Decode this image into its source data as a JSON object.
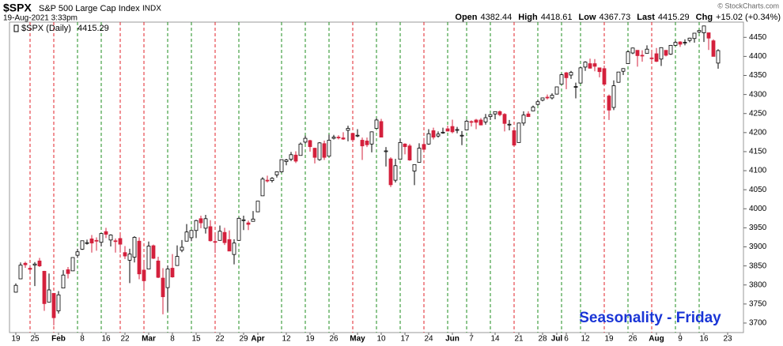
{
  "chart_data": {
    "type": "candlestick",
    "title": "$SPX",
    "subtitle": "S&P 500 Large Cap Index",
    "exchange": "INDX",
    "date": "19-Aug-2021 3:33pm",
    "credit": "© StockCharts.com",
    "legend": "$SPX (Daily)",
    "header_labels": {
      "open": "Open",
      "high": "High",
      "low": "Low",
      "last": "Last",
      "change": "Chg"
    },
    "change": "+15.02 (+0.34%)",
    "annotation": "Seasonality - Friday",
    "up_color": "#ffffff",
    "down_color": "#d4203c",
    "outline_color": "#000000",
    "categories": [
      "Jan 19",
      "Jan 20",
      "Jan 21",
      "Jan 22",
      "Jan 25",
      "Jan 26",
      "Jan 27",
      "Jan 28",
      "Jan 29",
      "Feb 1",
      "Feb 2",
      "Feb 3",
      "Feb 4",
      "Feb 5",
      "Feb 8",
      "Feb 9",
      "Feb 10",
      "Feb 11",
      "Feb 12",
      "Feb 16",
      "Feb 17",
      "Feb 18",
      "Feb 19",
      "Feb 22",
      "Feb 23",
      "Feb 24",
      "Feb 25",
      "Feb 26",
      "Mar 1",
      "Mar 2",
      "Mar 3",
      "Mar 4",
      "Mar 5",
      "Mar 8",
      "Mar 9",
      "Mar 10",
      "Mar 11",
      "Mar 12",
      "Mar 15",
      "Mar 16",
      "Mar 17",
      "Mar 18",
      "Mar 19",
      "Mar 22",
      "Mar 23",
      "Mar 24",
      "Mar 25",
      "Mar 26",
      "Mar 29",
      "Mar 30",
      "Mar 31",
      "Apr 1",
      "Apr 5",
      "Apr 6",
      "Apr 7",
      "Apr 8",
      "Apr 9",
      "Apr 12",
      "Apr 13",
      "Apr 14",
      "Apr 15",
      "Apr 16",
      "Apr 19",
      "Apr 20",
      "Apr 21",
      "Apr 22",
      "Apr 23",
      "Apr 26",
      "Apr 27",
      "Apr 28",
      "Apr 29",
      "Apr 30",
      "May 3",
      "May 4",
      "May 5",
      "May 6",
      "May 7",
      "May 10",
      "May 11",
      "May 12",
      "May 13",
      "May 14",
      "May 17",
      "May 18",
      "May 19",
      "May 20",
      "May 21",
      "May 24",
      "May 25",
      "May 26",
      "May 27",
      "May 28",
      "Jun 1",
      "Jun 2",
      "Jun 3",
      "Jun 4",
      "Jun 7",
      "Jun 8",
      "Jun 9",
      "Jun 10",
      "Jun 11",
      "Jun 14",
      "Jun 15",
      "Jun 16",
      "Jun 17",
      "Jun 18",
      "Jun 21",
      "Jun 22",
      "Jun 23",
      "Jun 24",
      "Jun 25",
      "Jun 28",
      "Jun 29",
      "Jun 30",
      "Jul 1",
      "Jul 2",
      "Jul 6",
      "Jul 7",
      "Jul 8",
      "Jul 9",
      "Jul 12",
      "Jul 13",
      "Jul 14",
      "Jul 15",
      "Jul 16",
      "Jul 19",
      "Jul 20",
      "Jul 21",
      "Jul 22",
      "Jul 23",
      "Jul 26",
      "Jul 27",
      "Jul 28",
      "Jul 29",
      "Jul 30",
      "Aug 2",
      "Aug 3",
      "Aug 4",
      "Aug 5",
      "Aug 6",
      "Aug 9",
      "Aug 10",
      "Aug 11",
      "Aug 12",
      "Aug 13",
      "Aug 16",
      "Aug 17",
      "Aug 18",
      "Aug 19",
      "Aug 20",
      "Aug 23"
    ],
    "open": [
      3781,
      3816,
      3857,
      3844,
      3852,
      3863,
      3836,
      3755,
      3778,
      3732,
      3792,
      3840,
      3837,
      3878,
      3894,
      3910,
      3921,
      3917,
      3912,
      3940,
      3918,
      3916,
      3922,
      3885,
      3865,
      3873,
      3915,
      3839,
      3842,
      3903,
      3863,
      3818,
      3793,
      3844,
      3851,
      3891,
      3915,
      3924,
      3943,
      3974,
      3949,
      3953,
      3914,
      3917,
      3938,
      3919,
      3880,
      3917,
      3969,
      3963,
      3967,
      3992,
      4034,
      4075,
      4074,
      4089,
      4097,
      4124,
      4130,
      4141,
      4140,
      4175,
      4179,
      4159,
      4129,
      4171,
      4138,
      4185,
      4188,
      4186,
      4206,
      4198,
      4191,
      4180,
      4178,
      4170,
      4211,
      4229,
      4150,
      4131,
      4075,
      4130,
      4170,
      4165,
      4099,
      4122,
      4169,
      4170,
      4205,
      4191,
      4201,
      4210,
      4216,
      4206,
      4192,
      4207,
      4229,
      4233,
      4233,
      4228,
      4242,
      4249,
      4255,
      4248,
      4220,
      4205,
      4174,
      4225,
      4249,
      4257,
      4274,
      4285,
      4293,
      4291,
      4301,
      4327,
      4357,
      4351,
      4321,
      4330,
      4372,
      4381,
      4381,
      4370,
      4368,
      4296,
      4266,
      4332,
      4361,
      4381,
      4409,
      4416,
      4403,
      4408,
      4396,
      4407,
      4393,
      4416,
      4406,
      4429,
      4438,
      4437,
      4442,
      4447,
      4464,
      4462,
      4462,
      4441,
      4382.44,
      null,
      null
    ],
    "high": [
      3804,
      3859,
      3861,
      3852,
      3860,
      3871,
      3837,
      3830,
      3778,
      3784,
      3839,
      3847,
      3872,
      3895,
      3916,
      3919,
      3931,
      3925,
      3935,
      3950,
      3933,
      3922,
      3931,
      3902,
      3895,
      3928,
      3925,
      3861,
      3914,
      3906,
      3874,
      3844,
      3851,
      3881,
      3904,
      3918,
      3960,
      3944,
      3971,
      3982,
      3984,
      3970,
      3931,
      3956,
      3950,
      3943,
      3920,
      3978,
      3982,
      3969,
      3994,
      4020,
      4083,
      4087,
      4083,
      4098,
      4129,
      4131,
      4149,
      4151,
      4174,
      4192,
      4181,
      4160,
      4175,
      4179,
      4195,
      4194,
      4193,
      4201,
      4218,
      4199,
      4209,
      4187,
      4187,
      4203,
      4238,
      4236,
      4162,
      4135,
      4131,
      4184,
      4172,
      4170,
      4117,
      4172,
      4186,
      4209,
      4213,
      4203,
      4213,
      4218,
      4234,
      4215,
      4204,
      4234,
      4232,
      4236,
      4238,
      4249,
      4249,
      4255,
      4258,
      4251,
      4233,
      4210,
      4226,
      4256,
      4256,
      4271,
      4286,
      4292,
      4300,
      4303,
      4320,
      4355,
      4359,
      4362,
      4331,
      4372,
      4387,
      4394,
      4393,
      4370,
      4376,
      4300,
      4337,
      4359,
      4369,
      4415,
      4423,
      4416,
      4416,
      4429,
      4412,
      4422,
      4424,
      4416,
      4430,
      4441,
      4440,
      4445,
      4449,
      4461,
      4468,
      4480,
      4462,
      4445,
      4418.61,
      null,
      null
    ],
    "low": [
      3780,
      3816,
      3845,
      3831,
      3797,
      3847,
      3732,
      3755,
      3694,
      3725,
      3792,
      3817,
      3837,
      3871,
      3892,
      3906,
      3885,
      3890,
      3901,
      3923,
      3901,
      3885,
      3885,
      3868,
      3805,
      3859,
      3815,
      3790,
      3842,
      3868,
      3818,
      3723,
      3730,
      3819,
      3851,
      3886,
      3915,
      3915,
      3923,
      3949,
      3935,
      3914,
      3884,
      3917,
      3905,
      3889,
      3854,
      3917,
      3944,
      3944,
      3967,
      3992,
      4034,
      4069,
      4069,
      4082,
      4095,
      4114,
      4125,
      4120,
      4140,
      4171,
      4150,
      4119,
      4126,
      4128,
      4138,
      4182,
      4182,
      4181,
      4177,
      4175,
      4188,
      4128,
      4162,
      4148,
      4210,
      4188,
      4111,
      4057,
      4069,
      4130,
      4143,
      4126,
      4062,
      4122,
      4152,
      4168,
      4182,
      4187,
      4197,
      4203,
      4198,
      4198,
      4167,
      4207,
      4216,
      4209,
      4219,
      4221,
      4233,
      4235,
      4243,
      4203,
      4206,
      4165,
      4174,
      4218,
      4241,
      4257,
      4271,
      4282,
      4287,
      4287,
      4300,
      4327,
      4314,
      4341,
      4290,
      4330,
      4362,
      4368,
      4361,
      4345,
      4325,
      4233,
      4259,
      4331,
      4351,
      4381,
      4406,
      4373,
      4386,
      4408,
      4389,
      4385,
      4375,
      4400,
      4404,
      4428,
      4425,
      4429,
      4437,
      4436,
      4461,
      4438,
      4417,
      4400,
      4367.73,
      null,
      null
    ],
    "close": [
      3799,
      3852,
      3853,
      3841,
      3855,
      3850,
      3751,
      3787,
      3714,
      3774,
      3826,
      3830,
      3872,
      3887,
      3916,
      3911,
      3910,
      3916,
      3935,
      3933,
      3931,
      3914,
      3907,
      3876,
      3881,
      3925,
      3829,
      3811,
      3902,
      3870,
      3820,
      3769,
      3842,
      3821,
      3875,
      3899,
      3939,
      3943,
      3969,
      3963,
      3974,
      3916,
      3913,
      3941,
      3911,
      3889,
      3910,
      3975,
      3971,
      3959,
      3973,
      4020,
      4078,
      4074,
      4080,
      4097,
      4129,
      4128,
      4142,
      4125,
      4170,
      4185,
      4163,
      4135,
      4173,
      4135,
      4180,
      4188,
      4187,
      4183,
      4211,
      4181,
      4193,
      4165,
      4168,
      4202,
      4233,
      4188,
      4152,
      4063,
      4113,
      4174,
      4163,
      4128,
      4116,
      4159,
      4156,
      4197,
      4188,
      4196,
      4201,
      4204,
      4202,
      4208,
      4193,
      4230,
      4227,
      4227,
      4220,
      4239,
      4247,
      4255,
      4247,
      4224,
      4222,
      4167,
      4225,
      4246,
      4242,
      4267,
      4281,
      4291,
      4292,
      4298,
      4320,
      4352,
      4344,
      4358,
      4321,
      4370,
      4385,
      4369,
      4374,
      4360,
      4327,
      4259,
      4323,
      4359,
      4368,
      4412,
      4422,
      4402,
      4401,
      4419,
      4395,
      4387,
      4423,
      4403,
      4429,
      4437,
      4432,
      4437,
      4448,
      4461,
      4468,
      4480,
      4448,
      4400,
      4415.29,
      null,
      null
    ],
    "ylim": [
      3675,
      4490
    ],
    "yticks": [
      3700,
      3750,
      3800,
      3850,
      3900,
      3950,
      4000,
      4050,
      4100,
      4150,
      4200,
      4250,
      4300,
      4350,
      4400,
      4450
    ],
    "xticks": [
      {
        "value": "Jan 19",
        "label": "19"
      },
      {
        "value": "Jan 25",
        "label": "25"
      },
      {
        "value": "Feb 1",
        "label": "Feb"
      },
      {
        "value": "Feb 8",
        "label": "8"
      },
      {
        "value": "Feb 16",
        "label": "16"
      },
      {
        "value": "Feb 22",
        "label": "22"
      },
      {
        "value": "Mar 1",
        "label": "Mar"
      },
      {
        "value": "Mar 8",
        "label": "8"
      },
      {
        "value": "Mar 15",
        "label": "15"
      },
      {
        "value": "Mar 22",
        "label": "22"
      },
      {
        "value": "Mar 29",
        "label": "29"
      },
      {
        "value": "Apr 1",
        "label": "Apr"
      },
      {
        "value": "Apr 12",
        "label": "12"
      },
      {
        "value": "Apr 19",
        "label": "19"
      },
      {
        "value": "Apr 26",
        "label": "26"
      },
      {
        "value": "May 3",
        "label": "May"
      },
      {
        "value": "May 10",
        "label": "10"
      },
      {
        "value": "May 17",
        "label": "17"
      },
      {
        "value": "May 24",
        "label": "24"
      },
      {
        "value": "Jun 1",
        "label": "Jun"
      },
      {
        "value": "Jun 7",
        "label": "7"
      },
      {
        "value": "Jun 14",
        "label": "14"
      },
      {
        "value": "Jun 21",
        "label": "21"
      },
      {
        "value": "Jun 28",
        "label": "28"
      },
      {
        "value": "Jul 1",
        "label": "Jul"
      },
      {
        "value": "Jul 6",
        "label": "6"
      },
      {
        "value": "Jul 12",
        "label": "12"
      },
      {
        "value": "Jul 19",
        "label": "19"
      },
      {
        "value": "Jul 26",
        "label": "26"
      },
      {
        "value": "Aug 2",
        "label": "Aug"
      },
      {
        "value": "Aug 9",
        "label": "9"
      },
      {
        "value": "Aug 16",
        "label": "16"
      },
      {
        "value": "Aug 23",
        "label": "23"
      }
    ],
    "friday_lines": {
      "x": [
        "Jan 22",
        "Jan 29",
        "Feb 5",
        "Feb 12",
        "Feb 19",
        "Feb 26",
        "Mar 5",
        "Mar 12",
        "Mar 19",
        "Mar 26",
        "Apr 9",
        "Apr 16",
        "Apr 23",
        "Apr 30",
        "May 7",
        "May 14",
        "May 21",
        "May 28",
        "Jun 4",
        "Jun 11",
        "Jun 18",
        "Jun 25",
        "Jul 2",
        "Jul 9",
        "Jul 16",
        "Jul 23",
        "Jul 30",
        "Aug 6",
        "Aug 13"
      ],
      "colors": [
        "#e0202a",
        "#e0202a",
        "#1e8c1e",
        "#1e8c1e",
        "#e0202a",
        "#e0202a",
        "#1e8c1e",
        "#1e8c1e",
        "#e0202a",
        "#1e8c1e",
        "#1e8c1e",
        "#1e8c1e",
        "#1e8c1e",
        "#e0202a",
        "#1e8c1e",
        "#1e8c1e",
        "#e0202a",
        "#1e8c1e",
        "#1e8c1e",
        "#1e8c1e",
        "#e0202a",
        "#1e8c1e",
        "#1e8c1e",
        "#1e8c1e",
        "#e0202a",
        "#1e8c1e",
        "#e0202a",
        "#1e8c1e",
        "#1e8c1e"
      ]
    }
  }
}
